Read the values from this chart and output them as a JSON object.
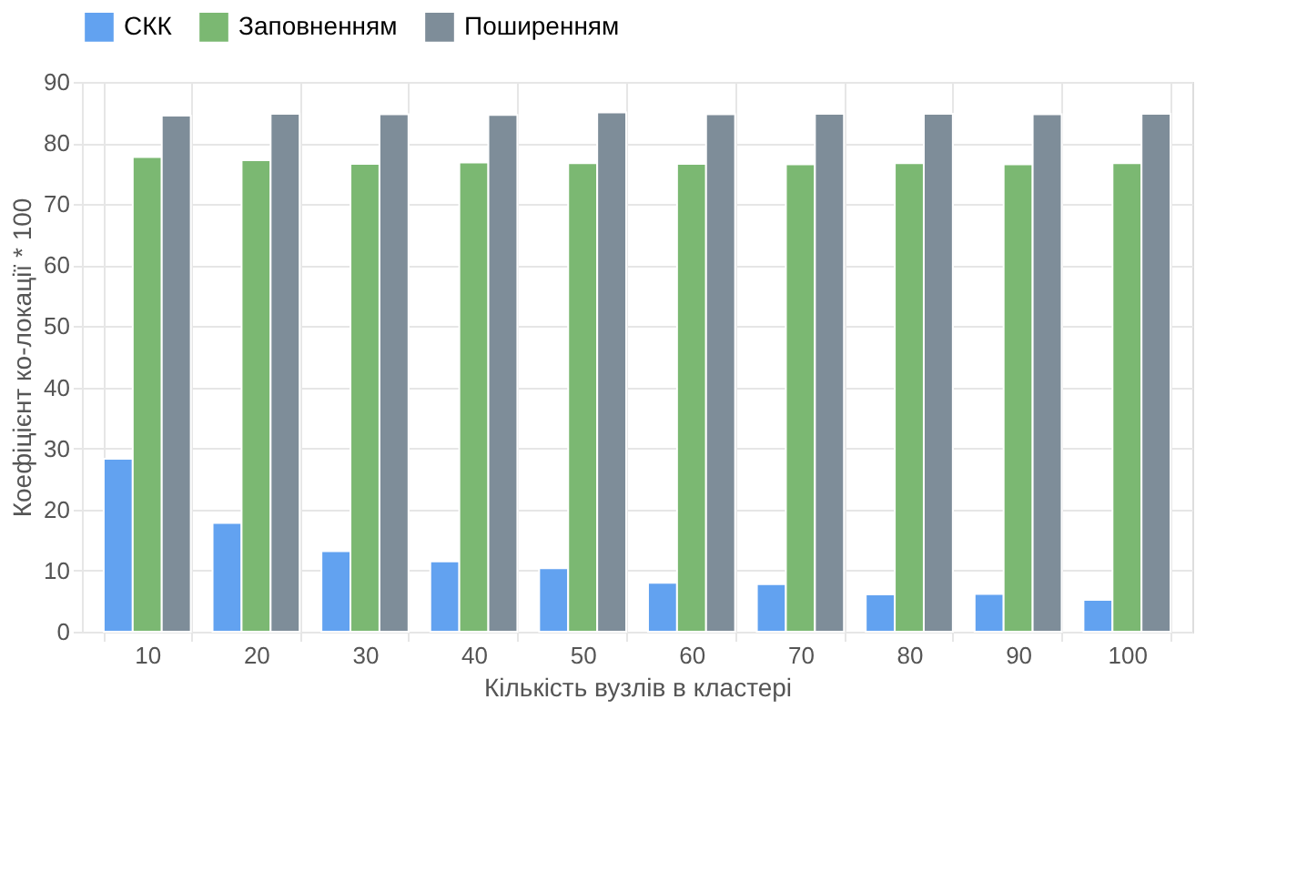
{
  "chart_data": {
    "type": "bar",
    "xlabel": "Кількість вузлів в кластері",
    "ylabel": "Коефіцієнт ко-локації * 100",
    "categories": [
      "10",
      "20",
      "30",
      "40",
      "50",
      "60",
      "70",
      "80",
      "90",
      "100"
    ],
    "series": [
      {
        "name": "СКК",
        "color": "#62a2f0",
        "values": [
          28.3,
          17.8,
          13.2,
          11.5,
          10.4,
          8.0,
          7.8,
          6.1,
          6.2,
          5.2
        ]
      },
      {
        "name": "Заповненням",
        "color": "#7bb872",
        "values": [
          77.7,
          77.2,
          76.6,
          76.8,
          76.7,
          76.6,
          76.5,
          76.7,
          76.5,
          76.7
        ]
      },
      {
        "name": "Поширенням",
        "color": "#7e8d99",
        "values": [
          84.5,
          84.8,
          84.7,
          84.6,
          85.0,
          84.7,
          84.8,
          84.8,
          84.7,
          84.8
        ]
      }
    ],
    "ylim": [
      0,
      90
    ],
    "yticks": [
      0,
      10,
      20,
      30,
      40,
      50,
      60,
      70,
      80,
      90
    ],
    "grid": true,
    "legend": "top"
  }
}
